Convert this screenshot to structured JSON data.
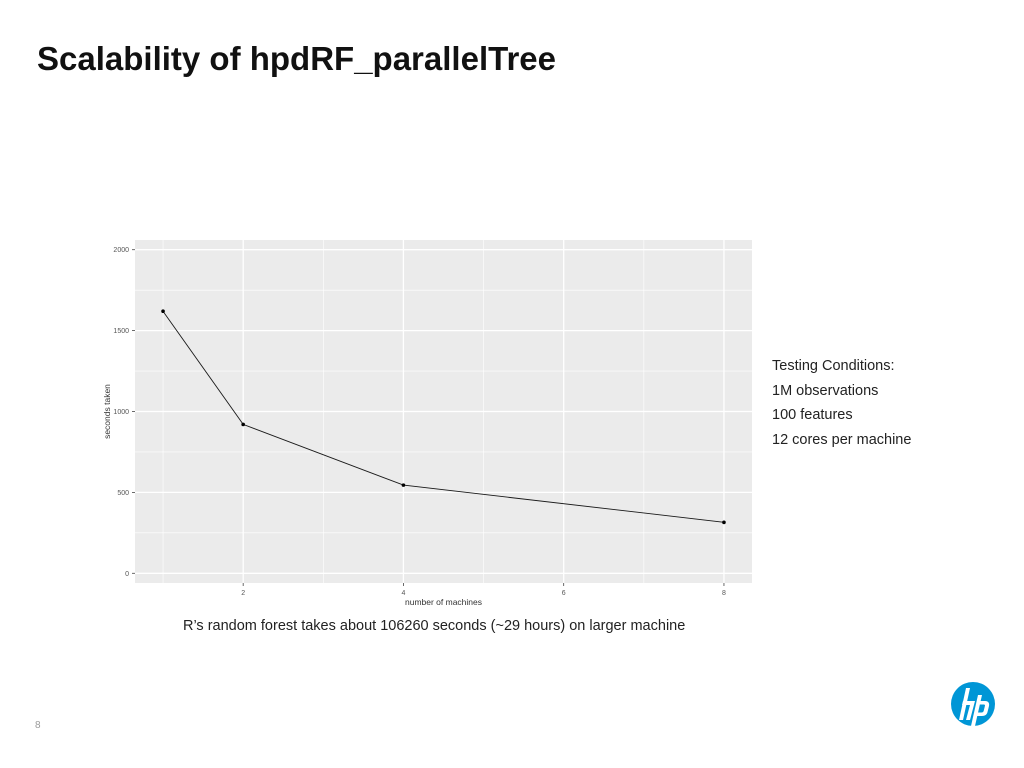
{
  "slide": {
    "title": "Scalability of hpdRF_parallelTree",
    "conditions": [
      "Testing Conditions:",
      "1M observations",
      "100 features",
      "12 cores per machine"
    ],
    "footnote": "R’s random forest takes about 106260 seconds (~29 hours) on larger machine",
    "page_number": "8",
    "logo_icon": "hp-logo-icon",
    "logo_color": "#0096d6"
  },
  "chart_data": {
    "type": "line",
    "xlabel": "number of machines",
    "ylabel": "seconds taken",
    "x": [
      1,
      2,
      4,
      8
    ],
    "series": [
      {
        "values": [
          1620,
          920,
          545,
          315
        ]
      }
    ],
    "xlim": [
      0.65,
      8.35
    ],
    "ylim": [
      -60,
      2060
    ],
    "xticks": [
      2,
      4,
      6,
      8
    ],
    "xticklabels": [
      "2",
      "4",
      "6",
      "8"
    ],
    "yticks": [
      0,
      500,
      1000,
      1500,
      2000
    ],
    "yticklabels": [
      "0",
      "500",
      "1000",
      "1500",
      "2000"
    ],
    "grid": true,
    "panel_color": "#ebebeb",
    "grid_color": "#ffffff",
    "line_color": "#1a1a1a"
  }
}
